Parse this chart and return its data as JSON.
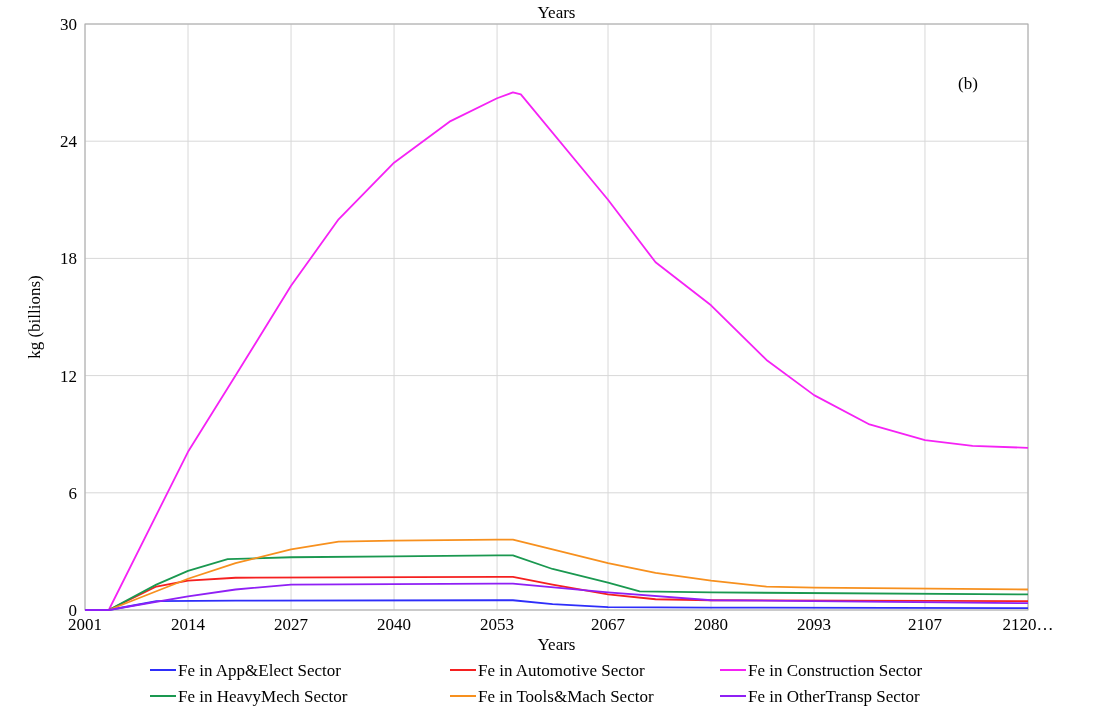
{
  "chart_data": {
    "type": "line",
    "title": "Years",
    "xlabel": "Years",
    "ylabel": "kg (billions)",
    "annotations": [
      "(b)"
    ],
    "xlim": [
      2001,
      2120
    ],
    "xticks": [
      2001,
      2014,
      2027,
      2040,
      2053,
      2067,
      2080,
      2093,
      2107,
      {
        "value": 2120,
        "label": "2120…"
      }
    ],
    "ylim": [
      0,
      30
    ],
    "yticks": [
      0,
      6,
      12,
      18,
      24,
      30
    ],
    "grid": true,
    "legend": "bottom",
    "line_style": "solid",
    "series": [
      {
        "name": "Fe in App&Elect Sector",
        "color": "#2e2efa",
        "x": [
          2001,
          2004,
          2010,
          2020,
          2053,
          2055,
          2060,
          2067,
          2080,
          2120
        ],
        "values": [
          0,
          0,
          0.45,
          0.48,
          0.5,
          0.5,
          0.3,
          0.15,
          0.12,
          0.1
        ]
      },
      {
        "name": "Fe in Automotive Sector",
        "color": "#f52020",
        "x": [
          2001,
          2004,
          2010,
          2014,
          2020,
          2053,
          2055,
          2060,
          2067,
          2073,
          2080,
          2120
        ],
        "values": [
          0,
          0,
          1.2,
          1.5,
          1.65,
          1.7,
          1.7,
          1.3,
          0.8,
          0.55,
          0.5,
          0.45
        ]
      },
      {
        "name": "Fe in Construction Sector",
        "color": "#f522f5",
        "x": [
          2001,
          2004,
          2014,
          2020,
          2027,
          2033,
          2040,
          2047,
          2053,
          2055,
          2056,
          2067,
          2073,
          2080,
          2087,
          2093,
          2100,
          2107,
          2113,
          2120
        ],
        "values": [
          0,
          0,
          8.1,
          12,
          16.6,
          20,
          22.9,
          25,
          26.2,
          26.5,
          26.4,
          21,
          17.8,
          15.6,
          12.8,
          11,
          9.5,
          8.7,
          8.4,
          8.3
        ]
      },
      {
        "name": "Fe in HeavyMech Sector",
        "color": "#1a9850",
        "x": [
          2001,
          2004,
          2010,
          2014,
          2019,
          2027,
          2040,
          2053,
          2055,
          2060,
          2067,
          2071,
          2080,
          2120
        ],
        "values": [
          0,
          0,
          1.3,
          2.0,
          2.6,
          2.7,
          2.75,
          2.8,
          2.8,
          2.1,
          1.4,
          0.95,
          0.9,
          0.8
        ]
      },
      {
        "name": "Fe in Tools&Mach Sector",
        "color": "#f7901e",
        "x": [
          2001,
          2004,
          2014,
          2020,
          2027,
          2033,
          2040,
          2053,
          2055,
          2060,
          2067,
          2073,
          2080,
          2087,
          2093,
          2120
        ],
        "values": [
          0,
          0,
          1.6,
          2.4,
          3.1,
          3.5,
          3.55,
          3.6,
          3.6,
          3.1,
          2.4,
          1.9,
          1.5,
          1.2,
          1.15,
          1.05
        ]
      },
      {
        "name": "Fe in OtherTransp Sector",
        "color": "#8f20f5",
        "x": [
          2001,
          2004,
          2014,
          2020,
          2027,
          2053,
          2055,
          2067,
          2080,
          2120
        ],
        "values": [
          0,
          0,
          0.7,
          1.05,
          1.3,
          1.35,
          1.35,
          0.9,
          0.5,
          0.35
        ]
      }
    ]
  }
}
